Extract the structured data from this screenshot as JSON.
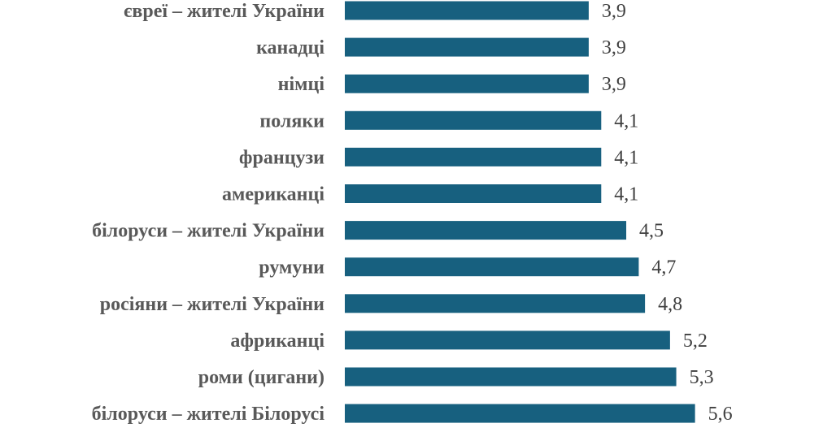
{
  "chart_data": {
    "type": "bar",
    "orientation": "horizontal",
    "categories": [
      "євреї – жителі України",
      "канадці",
      "німці",
      "поляки",
      "французи",
      "американці",
      "білоруси – жителі України",
      "румуни",
      "росіяни – жителі України",
      "африканці",
      "роми (цигани)",
      "білоруси – жителі Білорусі"
    ],
    "values": [
      3.9,
      3.9,
      3.9,
      4.1,
      4.1,
      4.1,
      4.5,
      4.7,
      4.8,
      5.2,
      5.3,
      5.6
    ],
    "value_labels": [
      "3,9",
      "3,9",
      "3,9",
      "4,1",
      "4,1",
      "4,1",
      "4,5",
      "4,7",
      "4,8",
      "5,2",
      "5,3",
      "5,6"
    ],
    "title": "",
    "xlabel": "",
    "ylabel": "",
    "grid": false,
    "legend": "none",
    "bar_color": "#17607F"
  }
}
